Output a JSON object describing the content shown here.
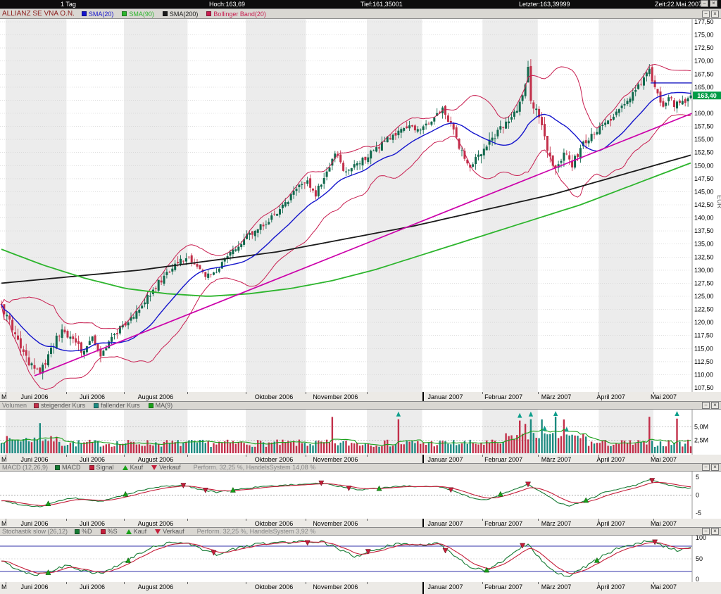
{
  "top_bar": {
    "period": "1 Tag",
    "high": "Hoch:163,69",
    "low": "Tief:161,35001",
    "last": "Letzter:163,39999",
    "time": "Zeit:22.Mai.2007"
  },
  "icons": {
    "minimize": "−",
    "close": "×"
  },
  "x_axis": {
    "band_color": "#ececec",
    "months": [
      {
        "label": "M",
        "pos": 0.002
      },
      {
        "label": "Juni 2006",
        "pos": 0.03
      },
      {
        "label": "Juli 2006",
        "pos": 0.115
      },
      {
        "label": "August 2006",
        "pos": 0.199
      },
      {
        "label": "Oktober 2006",
        "pos": 0.368
      },
      {
        "label": "November 2006",
        "pos": 0.452
      },
      {
        "label": "Januar 2007",
        "pos": 0.618
      },
      {
        "label": "Februar 2007",
        "pos": 0.7
      },
      {
        "label": "März 2007",
        "pos": 0.782
      },
      {
        "label": "April 2007",
        "pos": 0.862
      },
      {
        "label": "Mai 2007",
        "pos": 0.94
      }
    ],
    "month_ticks": [
      0.008,
      0.096,
      0.179,
      0.271,
      0.355,
      0.442,
      0.53,
      0.61,
      0.697,
      0.777,
      0.865,
      0.944
    ],
    "year_divider_pos": 0.61,
    "gray_bands": [
      [
        0.008,
        0.096
      ],
      [
        0.179,
        0.271
      ],
      [
        0.355,
        0.442
      ],
      [
        0.53,
        0.61
      ],
      [
        0.697,
        0.777
      ],
      [
        0.865,
        0.944
      ]
    ]
  },
  "panels": {
    "price": {
      "title": "ALLIANZ SE VNA O.N.",
      "unit": "EUR",
      "badge_color": "#009c46",
      "last_price_label": "163,40",
      "legend": [
        {
          "label": "SMA(20)",
          "color": "#1414cc",
          "marker": "square"
        },
        {
          "label": "SMA(90)",
          "color": "#2db52d",
          "marker": "square"
        },
        {
          "label": "SMA(200)",
          "color": "#1a1a1a",
          "marker": "square"
        },
        {
          "label": "Bollinger Band(20)",
          "color": "#c81e50",
          "marker": "square"
        }
      ],
      "y_labels": [
        "177,50",
        "175,00",
        "172,50",
        "170,00",
        "167,50",
        "165,00",
        "162,50",
        "160,00",
        "157,50",
        "155,00",
        "152,50",
        "150,00",
        "147,50",
        "145,00",
        "142,50",
        "140,00",
        "137,50",
        "135,00",
        "132,50",
        "130,00",
        "127,50",
        "125,00",
        "122,50",
        "120,00",
        "117,50",
        "115,00",
        "112,50",
        "110,00",
        "107,50"
      ]
    },
    "volume": {
      "title": "Volumen",
      "legend": [
        {
          "label": "steigender Kurs",
          "color": "#c2304a",
          "marker": "square"
        },
        {
          "label": "fallender Kurs",
          "color": "#1d8a80",
          "marker": "square"
        },
        {
          "label": "MA(9)",
          "color": "#18a018",
          "marker": "square"
        }
      ],
      "y_labels": [
        {
          "text": "5,0M",
          "value": 5.0
        },
        {
          "text": "2,5M",
          "value": 2.5
        }
      ]
    },
    "macd": {
      "title": "MACD (12,26,9)",
      "legend": [
        {
          "label": "MACD",
          "color": "#157a33",
          "marker": "square"
        },
        {
          "label": "Signal",
          "color": "#c41e3a",
          "marker": "square"
        },
        {
          "label": "Kauf",
          "color": "#18a018",
          "marker": "triangle-up"
        },
        {
          "label": "Verkauf",
          "color": "#c41e3a",
          "marker": "triangle-down"
        }
      ],
      "performance": "Perform. 32,25 %, HandelsSystem 14,08 %",
      "y_labels": [
        {
          "text": "5",
          "value": 5
        },
        {
          "text": "0",
          "value": 0
        },
        {
          "text": "-5",
          "value": -5
        }
      ]
    },
    "stoch": {
      "title": "Stochastik slow (26,12)",
      "legend": [
        {
          "label": "%D",
          "color": "#157a33",
          "marker": "square"
        },
        {
          "label": "%S",
          "color": "#c41e3a",
          "marker": "square"
        },
        {
          "label": "Kauf",
          "color": "#18a018",
          "marker": "triangle-up"
        },
        {
          "label": "Verkauf",
          "color": "#c41e3a",
          "marker": "triangle-down"
        }
      ],
      "performance": "Perform. 32,25 %, HandelsSystem 3,92 %",
      "y_labels": [
        {
          "text": "100",
          "value": 100
        },
        {
          "text": "50",
          "value": 50
        },
        {
          "text": "0",
          "value": 0
        }
      ]
    }
  },
  "chart_data": {
    "type": "candlestick",
    "instrument": "ALLIANZ SE VNA O.N.",
    "timeframe": "1 Tag",
    "x_range_days": 251,
    "price_ylim": [
      107.5,
      177.5
    ],
    "last_price": 163.4,
    "candle_up_color": "#10684c",
    "candle_down_color": "#c2304a",
    "close_keypoints": [
      [
        0,
        123
      ],
      [
        4,
        119
      ],
      [
        9,
        113
      ],
      [
        14,
        110.2
      ],
      [
        18,
        115
      ],
      [
        22,
        119
      ],
      [
        26,
        116.5
      ],
      [
        30,
        114.5
      ],
      [
        33,
        117.5
      ],
      [
        36,
        113.2
      ],
      [
        40,
        117
      ],
      [
        44,
        119.5
      ],
      [
        48,
        121
      ],
      [
        52,
        124
      ],
      [
        56,
        127
      ],
      [
        60,
        129.5
      ],
      [
        64,
        131.5
      ],
      [
        67,
        132.5
      ],
      [
        70,
        131
      ],
      [
        74,
        128.5
      ],
      [
        78,
        130
      ],
      [
        82,
        132.5
      ],
      [
        86,
        134.5
      ],
      [
        88,
        136
      ],
      [
        92,
        137.5
      ],
      [
        96,
        139
      ],
      [
        100,
        141
      ],
      [
        104,
        143.5
      ],
      [
        108,
        146.5
      ],
      [
        111,
        147
      ],
      [
        114,
        144.5
      ],
      [
        118,
        149
      ],
      [
        121,
        152.5
      ],
      [
        125,
        148.5
      ],
      [
        128,
        150.5
      ],
      [
        132,
        151.5
      ],
      [
        136,
        153
      ],
      [
        140,
        155
      ],
      [
        144,
        156.5
      ],
      [
        148,
        157.5
      ],
      [
        152,
        157
      ],
      [
        156,
        158.5
      ],
      [
        160,
        160.5
      ],
      [
        163,
        158
      ],
      [
        166,
        153.5
      ],
      [
        170,
        150
      ],
      [
        173,
        152.5
      ],
      [
        176,
        153.5
      ],
      [
        180,
        156.5
      ],
      [
        184,
        158.5
      ],
      [
        188,
        162
      ],
      [
        190,
        166
      ],
      [
        191,
        169.5
      ],
      [
        192,
        163
      ],
      [
        194,
        160.5
      ],
      [
        196,
        158
      ],
      [
        198,
        153
      ],
      [
        201,
        149.5
      ],
      [
        204,
        152.5
      ],
      [
        207,
        150
      ],
      [
        210,
        153.5
      ],
      [
        214,
        156
      ],
      [
        218,
        157.5
      ],
      [
        222,
        159.5
      ],
      [
        226,
        162
      ],
      [
        230,
        164.5
      ],
      [
        233,
        166.5
      ],
      [
        235,
        168.5
      ],
      [
        236,
        166
      ],
      [
        238,
        163.5
      ],
      [
        240,
        161
      ],
      [
        242,
        163
      ],
      [
        244,
        161.5
      ],
      [
        246,
        162.5
      ],
      [
        248,
        161.5
      ],
      [
        250,
        163.4
      ]
    ],
    "sma90_keypoints": [
      [
        0,
        134
      ],
      [
        15,
        131
      ],
      [
        30,
        128.5
      ],
      [
        45,
        126.5
      ],
      [
        60,
        125.5
      ],
      [
        75,
        125
      ],
      [
        90,
        125.5
      ],
      [
        105,
        126.5
      ],
      [
        120,
        128
      ],
      [
        135,
        130
      ],
      [
        150,
        132.5
      ],
      [
        165,
        135
      ],
      [
        180,
        137.5
      ],
      [
        195,
        140
      ],
      [
        210,
        142.5
      ],
      [
        225,
        145.5
      ],
      [
        240,
        148.5
      ],
      [
        250,
        150.5
      ]
    ],
    "sma200_keypoints": [
      [
        0,
        127.5
      ],
      [
        50,
        130
      ],
      [
        100,
        133.5
      ],
      [
        150,
        138.5
      ],
      [
        200,
        144.5
      ],
      [
        250,
        152
      ]
    ],
    "trendline": {
      "from": [
        12,
        109.8
      ],
      "to": [
        251,
        160
      ],
      "color": "#cc00aa"
    },
    "resistance_line": {
      "price": 165.8,
      "from_frac": 0.94,
      "color": "#0000bb"
    },
    "volume": {
      "ylim_millions": [
        0,
        7.5
      ],
      "gridlines": [
        2.5,
        5.0
      ],
      "spike_days": [
        14,
        120,
        144,
        188,
        190,
        192,
        196,
        201,
        204,
        235,
        245
      ],
      "arrow_days": [
        144,
        188,
        192,
        197,
        201,
        205,
        245
      ]
    },
    "macd": {
      "ylim": [
        -6,
        6
      ],
      "keypoints": [
        [
          0,
          -1.5
        ],
        [
          8,
          -2.8
        ],
        [
          14,
          -3.2
        ],
        [
          20,
          -1.8
        ],
        [
          26,
          -0.8
        ],
        [
          30,
          -1.2
        ],
        [
          36,
          -1.8
        ],
        [
          42,
          -0.5
        ],
        [
          50,
          1.2
        ],
        [
          58,
          2.4
        ],
        [
          66,
          2.8
        ],
        [
          72,
          1.6
        ],
        [
          78,
          0.8
        ],
        [
          84,
          1.4
        ],
        [
          92,
          2.2
        ],
        [
          100,
          2.6
        ],
        [
          108,
          3.0
        ],
        [
          116,
          3.4
        ],
        [
          124,
          2.2
        ],
        [
          130,
          1.4
        ],
        [
          138,
          2.0
        ],
        [
          146,
          2.6
        ],
        [
          152,
          2.2
        ],
        [
          158,
          2.6
        ],
        [
          164,
          1.2
        ],
        [
          170,
          -0.6
        ],
        [
          176,
          -1.4
        ],
        [
          182,
          0.4
        ],
        [
          188,
          2.2
        ],
        [
          191,
          3.0
        ],
        [
          196,
          0.8
        ],
        [
          202,
          -2.2
        ],
        [
          206,
          -3.0
        ],
        [
          212,
          -1.6
        ],
        [
          218,
          0.6
        ],
        [
          224,
          1.8
        ],
        [
          230,
          2.8
        ],
        [
          235,
          4.4
        ],
        [
          239,
          3.4
        ],
        [
          245,
          2.4
        ],
        [
          250,
          1.9
        ]
      ],
      "buy_days": [
        17,
        45,
        84,
        137,
        181,
        212
      ],
      "sell_days": [
        66,
        74,
        116,
        126,
        163,
        191,
        236
      ]
    },
    "stoch": {
      "ylim": [
        0,
        100
      ],
      "overbought": 80,
      "oversold": 20,
      "keypoints": [
        [
          0,
          45
        ],
        [
          6,
          25
        ],
        [
          12,
          12
        ],
        [
          18,
          22
        ],
        [
          24,
          35
        ],
        [
          30,
          22
        ],
        [
          36,
          15
        ],
        [
          42,
          32
        ],
        [
          48,
          55
        ],
        [
          54,
          75
        ],
        [
          60,
          88
        ],
        [
          66,
          90
        ],
        [
          72,
          75
        ],
        [
          78,
          60
        ],
        [
          84,
          72
        ],
        [
          92,
          85
        ],
        [
          100,
          88
        ],
        [
          108,
          91
        ],
        [
          116,
          92
        ],
        [
          122,
          74
        ],
        [
          128,
          55
        ],
        [
          134,
          66
        ],
        [
          140,
          80
        ],
        [
          146,
          88
        ],
        [
          152,
          82
        ],
        [
          158,
          86
        ],
        [
          164,
          60
        ],
        [
          170,
          30
        ],
        [
          176,
          20
        ],
        [
          182,
          46
        ],
        [
          188,
          76
        ],
        [
          191,
          86
        ],
        [
          196,
          45
        ],
        [
          202,
          15
        ],
        [
          206,
          10
        ],
        [
          212,
          32
        ],
        [
          218,
          56
        ],
        [
          224,
          76
        ],
        [
          230,
          86
        ],
        [
          235,
          93
        ],
        [
          240,
          80
        ],
        [
          245,
          70
        ],
        [
          250,
          76
        ]
      ],
      "buy_days": [
        17,
        46,
        176,
        216
      ],
      "sell_days": [
        77,
        111,
        133,
        161,
        189,
        237
      ]
    }
  }
}
